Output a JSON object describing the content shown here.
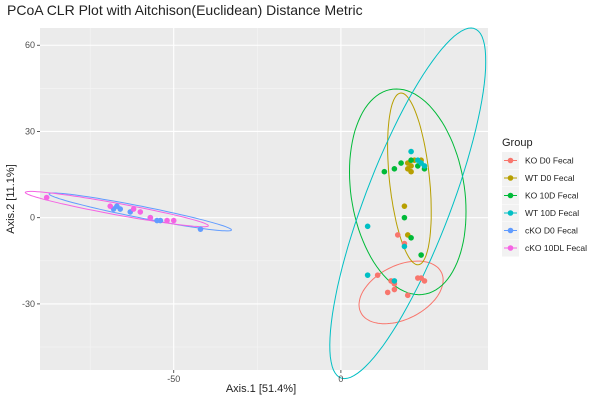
{
  "chart_data": {
    "type": "scatter",
    "title": "PCoA CLR Plot with Aitchison(Euclidean) Distance Metric",
    "xlabel": "Axis.1   [51.4%]",
    "ylabel": "Axis.2   [11.1%]",
    "xlim": [
      -90,
      44
    ],
    "ylim": [
      -53,
      66
    ],
    "xticks": [
      -50,
      0
    ],
    "yticks": [
      -30,
      0,
      30,
      60
    ],
    "grid": true,
    "legend": {
      "title": "Group",
      "placement": "right"
    },
    "series": [
      {
        "name": "KO D0 Fecal",
        "color": "#F8766D",
        "points": [
          [
            17,
            -6
          ],
          [
            19,
            -9
          ],
          [
            15,
            -22
          ],
          [
            16,
            -23
          ],
          [
            23,
            -21
          ],
          [
            24,
            -21
          ],
          [
            25,
            -22
          ],
          [
            14,
            -26
          ],
          [
            16,
            -25
          ],
          [
            20,
            -27
          ],
          [
            11,
            -20
          ]
        ],
        "ellipse": {
          "cx": 18,
          "cy": -26,
          "rx": 14,
          "ry": 9,
          "angle": 35
        }
      },
      {
        "name": "WT D0 Fecal",
        "color": "#B79F00",
        "points": [
          [
            20,
            19
          ],
          [
            21,
            18
          ],
          [
            22,
            20
          ],
          [
            20,
            17
          ],
          [
            21,
            16
          ],
          [
            24,
            20
          ],
          [
            19,
            4
          ],
          [
            20,
            -6
          ]
        ],
        "ellipse": {
          "cx": 20.5,
          "cy": 13.5,
          "rx": 30,
          "ry": 6,
          "angle": 95
        }
      },
      {
        "name": "KO 10D Fecal",
        "color": "#00BA38",
        "points": [
          [
            13,
            16
          ],
          [
            16,
            17
          ],
          [
            18,
            19
          ],
          [
            21,
            20
          ],
          [
            23,
            18
          ],
          [
            25,
            17
          ],
          [
            19,
            0
          ],
          [
            21,
            -7
          ],
          [
            24,
            -13
          ]
        ],
        "ellipse": {
          "cx": 20,
          "cy": 9,
          "rx": 36,
          "ry": 17,
          "angle": 97
        }
      },
      {
        "name": "WT 10D Fecal",
        "color": "#00BFC4",
        "points": [
          [
            21,
            23
          ],
          [
            23,
            20
          ],
          [
            24,
            19
          ],
          [
            25,
            18
          ],
          [
            19,
            -10
          ],
          [
            8,
            -3
          ],
          [
            8,
            -20
          ],
          [
            16,
            -22
          ]
        ],
        "ellipse": {
          "cx": 20,
          "cy": 5,
          "rx": 64,
          "ry": 13,
          "angle": 72
        }
      },
      {
        "name": "cKO D0 Fecal",
        "color": "#619CFF",
        "points": [
          [
            -67,
            4
          ],
          [
            -66,
            3
          ],
          [
            -68,
            3
          ],
          [
            -63,
            2
          ],
          [
            -57,
            0
          ],
          [
            -55,
            -1
          ],
          [
            -54,
            -1
          ],
          [
            -42,
            -4
          ]
        ],
        "ellipse": {
          "cx": -60,
          "cy": 2,
          "rx": 28,
          "ry": 2,
          "angle": -13
        }
      },
      {
        "name": "cKO 10DL Fecal",
        "color": "#F564E3",
        "points": [
          [
            -88,
            7
          ],
          [
            -69,
            4
          ],
          [
            -62,
            3
          ],
          [
            -60,
            2
          ],
          [
            -57,
            0
          ],
          [
            -52,
            -1
          ],
          [
            -50,
            -1
          ]
        ],
        "ellipse": {
          "cx": -67,
          "cy": 3,
          "rx": 28,
          "ry": 2,
          "angle": -12
        }
      }
    ]
  }
}
